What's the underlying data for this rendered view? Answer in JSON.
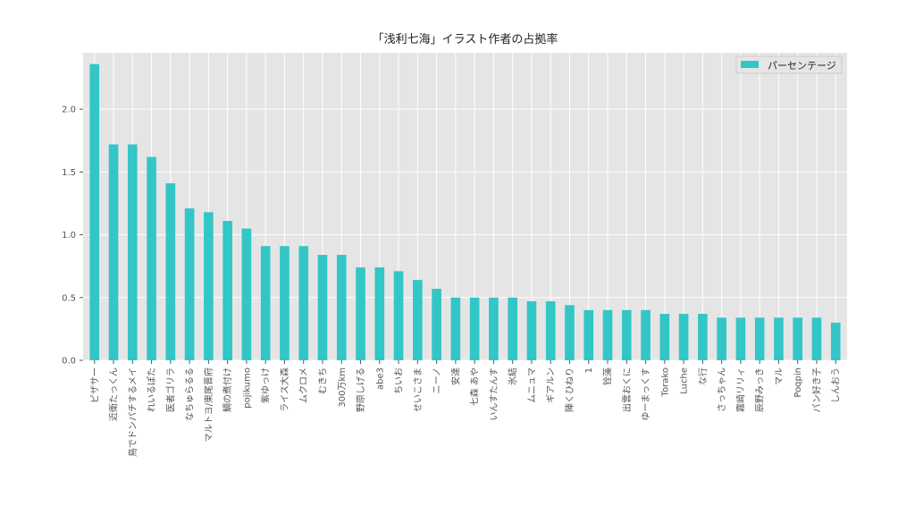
{
  "chart_data": {
    "type": "bar",
    "title": "「浅利七海」イラスト作者の占拠率",
    "xlabel": "",
    "ylabel": "",
    "ylim": [
      0,
      2.45
    ],
    "yticks": [
      "0.0",
      "0.5",
      "1.0",
      "1.5",
      "2.0"
    ],
    "grid": true,
    "legend": "top-right",
    "categories": [
      "ピザサー",
      "近衛たっくん",
      "鳥でドンパチするメイ",
      "れいるぽた",
      "医者ゴリラ",
      "なちゅらるる",
      "マルトヨ/東尾晋府",
      "鯛の煮付け",
      "pojikumo",
      "紫ゆっけ",
      "ライス大森",
      "ムクロメ",
      "むきち",
      "300万km",
      "野原しげる",
      "abe3",
      "ちいお",
      "せいこさま",
      "ニーノ",
      "安達",
      "七森 あや",
      "いんすたんす",
      "氷結",
      "ムニュマ",
      "ギアルン",
      "陣くひねり",
      "1",
      "铨藻",
      "出雲おくに",
      "ゆーまっくす",
      "Torako",
      "Luche",
      "な行",
      "さっちゃん",
      "霧崎リリィ",
      "辰野みっき",
      "マル",
      "Poqpin",
      "パン好き子",
      "しんおう"
    ],
    "series": [
      {
        "name": "パーセンテージ",
        "color": "#33c6c6",
        "values": [
          2.36,
          1.72,
          1.72,
          1.62,
          1.41,
          1.21,
          1.18,
          1.11,
          1.05,
          0.91,
          0.91,
          0.91,
          0.84,
          0.84,
          0.74,
          0.74,
          0.71,
          0.64,
          0.57,
          0.5,
          0.5,
          0.5,
          0.5,
          0.47,
          0.47,
          0.44,
          0.4,
          0.4,
          0.4,
          0.4,
          0.37,
          0.37,
          0.37,
          0.34,
          0.34,
          0.34,
          0.34,
          0.34,
          0.34,
          0.3
        ]
      }
    ]
  }
}
